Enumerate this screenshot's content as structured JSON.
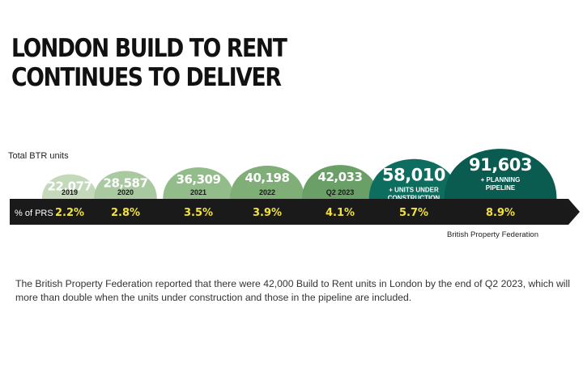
{
  "title_lines": [
    "LONDON BUILD TO RENT",
    "CONTINUES TO DELIVER"
  ],
  "caption": "The British Property Federation reported that there were 42,000 Build to Rent units in London by the end of Q2 2023, which will more than double when the units under construction and those in the pipeline are included.",
  "chart_data": {
    "type": "bar",
    "series_label": "Total BTR units",
    "row_label": "% of PRS",
    "source": "British Property Federation",
    "categories": [
      [
        "2019"
      ],
      [
        "2020"
      ],
      [
        "2021"
      ],
      [
        "2022"
      ],
      [
        "Q2 2023"
      ],
      [
        "+ UNITS UNDER",
        "CONSTRUCTION"
      ],
      [
        "+ PLANNING",
        "PIPELINE"
      ]
    ],
    "values": [
      22077,
      28587,
      36309,
      40198,
      42033,
      58010,
      91603
    ],
    "value_labels": [
      "22,077",
      "28,587",
      "36,309",
      "40,198",
      "42,033",
      "58,010",
      "91,603"
    ],
    "prs_share": [
      "2.2%",
      "2.8%",
      "3.5%",
      "3.9%",
      "4.1%",
      "5.7%",
      "8.9%"
    ],
    "colors": [
      "#c3d9b9",
      "#a9c9a1",
      "#93bc8b",
      "#7fae77",
      "#6aa067",
      "#0d6e5f",
      "#0b5c50"
    ],
    "arrow_color": "#1a1a1a",
    "share_color": "#f2e13c"
  }
}
